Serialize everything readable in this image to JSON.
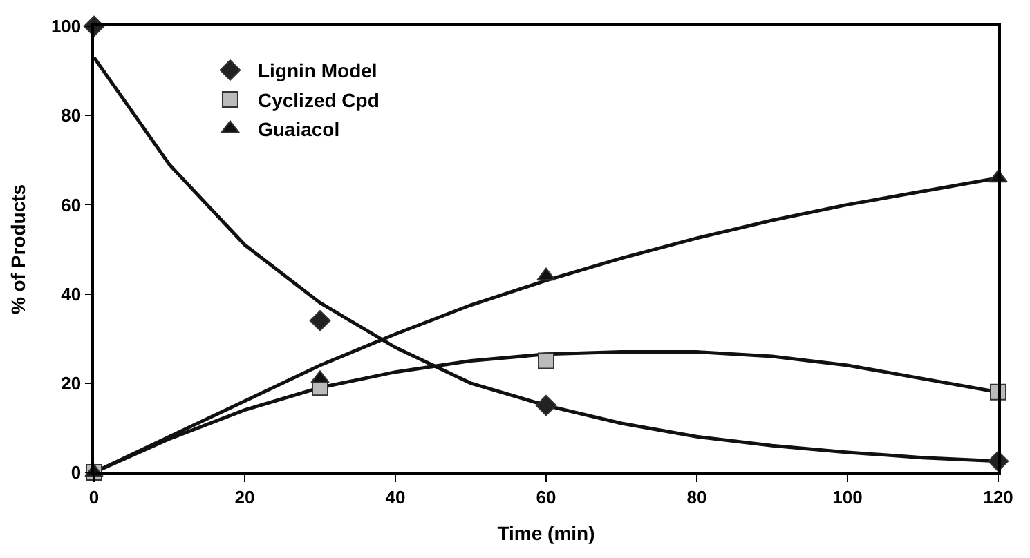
{
  "chart_data": {
    "type": "scatter",
    "xlabel": "Time (min)",
    "ylabel": "% of Products",
    "xlim": [
      0,
      120
    ],
    "ylim": [
      0,
      100
    ],
    "xticks": [
      0,
      20,
      40,
      60,
      80,
      100,
      120
    ],
    "yticks": [
      0,
      20,
      40,
      60,
      80,
      100
    ],
    "legend": "top left",
    "series": [
      {
        "name": "Lignin Model",
        "marker": "diamond",
        "color": "#222222",
        "x": [
          0,
          30,
          60,
          120
        ],
        "values": [
          100,
          34,
          15,
          2.5
        ]
      },
      {
        "name": "Cyclized Cpd",
        "marker": "square",
        "color": "#bbbbbb",
        "x": [
          0,
          30,
          60,
          120
        ],
        "values": [
          0,
          19,
          25,
          18
        ]
      },
      {
        "name": "Guaiacol",
        "marker": "triangle",
        "color": "#111111",
        "x": [
          0,
          30,
          60,
          120
        ],
        "values": [
          0,
          21,
          44,
          66
        ]
      },
      {
        "type": "line",
        "marker": "none",
        "color": "#111111",
        "x": [
          0,
          10,
          20,
          30,
          40,
          50,
          60,
          70,
          80,
          90,
          100,
          110,
          120
        ],
        "values": [
          93,
          69,
          51,
          38,
          28,
          20,
          15,
          11,
          8,
          6,
          4.5,
          3.3,
          2.5
        ]
      },
      {
        "type": "line",
        "marker": "none",
        "color": "#111111",
        "x": [
          0,
          10,
          20,
          30,
          40,
          50,
          60,
          70,
          80,
          90,
          100,
          110,
          120
        ],
        "values": [
          0,
          7.5,
          14,
          19,
          22.5,
          25,
          26.5,
          27,
          27,
          26,
          24,
          21,
          18
        ]
      },
      {
        "type": "line",
        "marker": "none",
        "color": "#111111",
        "x": [
          0,
          10,
          20,
          30,
          40,
          50,
          60,
          70,
          80,
          90,
          100,
          110,
          120
        ],
        "values": [
          0,
          8,
          16,
          24,
          31,
          37.5,
          43,
          48,
          52.5,
          56.5,
          60,
          63,
          66
        ]
      }
    ]
  }
}
